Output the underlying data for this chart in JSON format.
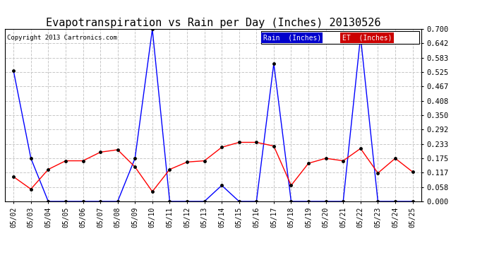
{
  "title": "Evapotranspiration vs Rain per Day (Inches) 20130526",
  "copyright": "Copyright 2013 Cartronics.com",
  "dates": [
    "05/02",
    "05/03",
    "05/04",
    "05/05",
    "05/06",
    "05/07",
    "05/08",
    "05/09",
    "05/10",
    "05/11",
    "05/12",
    "05/13",
    "05/14",
    "05/15",
    "05/16",
    "05/17",
    "05/18",
    "05/19",
    "05/20",
    "05/21",
    "05/22",
    "05/23",
    "05/24",
    "05/25"
  ],
  "rain": [
    0.53,
    0.175,
    0.0,
    0.0,
    0.0,
    0.0,
    0.0,
    0.175,
    0.7,
    0.0,
    0.0,
    0.0,
    0.065,
    0.0,
    0.0,
    0.56,
    0.0,
    0.0,
    0.0,
    0.0,
    0.67,
    0.0,
    0.0,
    0.0
  ],
  "et": [
    0.1,
    0.05,
    0.13,
    0.165,
    0.165,
    0.2,
    0.21,
    0.14,
    0.04,
    0.13,
    0.16,
    0.165,
    0.22,
    0.24,
    0.24,
    0.225,
    0.065,
    0.155,
    0.175,
    0.165,
    0.215,
    0.115,
    0.175,
    0.12
  ],
  "ylim": [
    0.0,
    0.7
  ],
  "yticks": [
    0.0,
    0.058,
    0.117,
    0.175,
    0.233,
    0.292,
    0.35,
    0.408,
    0.467,
    0.525,
    0.583,
    0.642,
    0.7
  ],
  "rain_color": "#0000ff",
  "et_color": "#ff0000",
  "background_color": "#ffffff",
  "grid_color": "#c8c8c8",
  "title_fontsize": 11,
  "legend_rain_bg": "#0000cc",
  "legend_et_bg": "#cc0000"
}
